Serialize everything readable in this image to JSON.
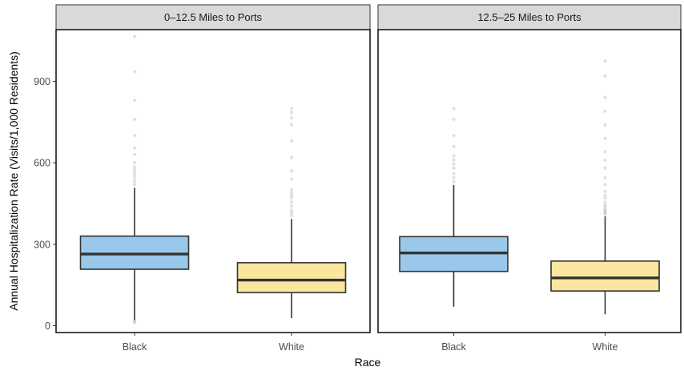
{
  "chart_data": {
    "type": "boxplot",
    "xlabel": "Race",
    "ylabel": "Annual Hospitalization Rate (Visits/1,000 Residents)",
    "ylim": [
      -25,
      1090
    ],
    "yticks": [
      0,
      300,
      600,
      900
    ],
    "grid": false,
    "legend": "none",
    "categories": [
      "Black",
      "White"
    ],
    "colors": {
      "Black": "#9ac8ea",
      "White": "#fae69e"
    },
    "panels": [
      {
        "title": "0–12.5 Miles to Ports",
        "boxes": [
          {
            "category": "Black",
            "whisker_low": 20,
            "q1": 208,
            "median": 264,
            "q3": 330,
            "whisker_high": 508,
            "outliers": [
              12,
              16,
              520,
              532,
              545,
              555,
              565,
              575,
              585,
              600,
              630,
              655,
              700,
              760,
              830,
              935,
              1065
            ]
          },
          {
            "category": "White",
            "whisker_low": 28,
            "q1": 122,
            "median": 168,
            "q3": 232,
            "whisker_high": 393,
            "outliers": [
              405,
              415,
              425,
              440,
              455,
              470,
              480,
              490,
              500,
              540,
              570,
              620,
              680,
              740,
              765,
              785,
              800
            ]
          }
        ]
      },
      {
        "title": "12.5–25 Miles to Ports",
        "boxes": [
          {
            "category": "Black",
            "whisker_low": 70,
            "q1": 200,
            "median": 268,
            "q3": 328,
            "whisker_high": 518,
            "outliers": [
              530,
              545,
              560,
              580,
              595,
              610,
              625,
              660,
              700,
              760,
              800
            ]
          },
          {
            "category": "White",
            "whisker_low": 42,
            "q1": 128,
            "median": 176,
            "q3": 238,
            "whisker_high": 403,
            "outliers": [
              410,
              415,
              420,
              425,
              430,
              438,
              445,
              455,
              470,
              480,
              495,
              520,
              545,
              580,
              610,
              640,
              690,
              740,
              790,
              840,
              920,
              975
            ]
          }
        ]
      }
    ]
  }
}
